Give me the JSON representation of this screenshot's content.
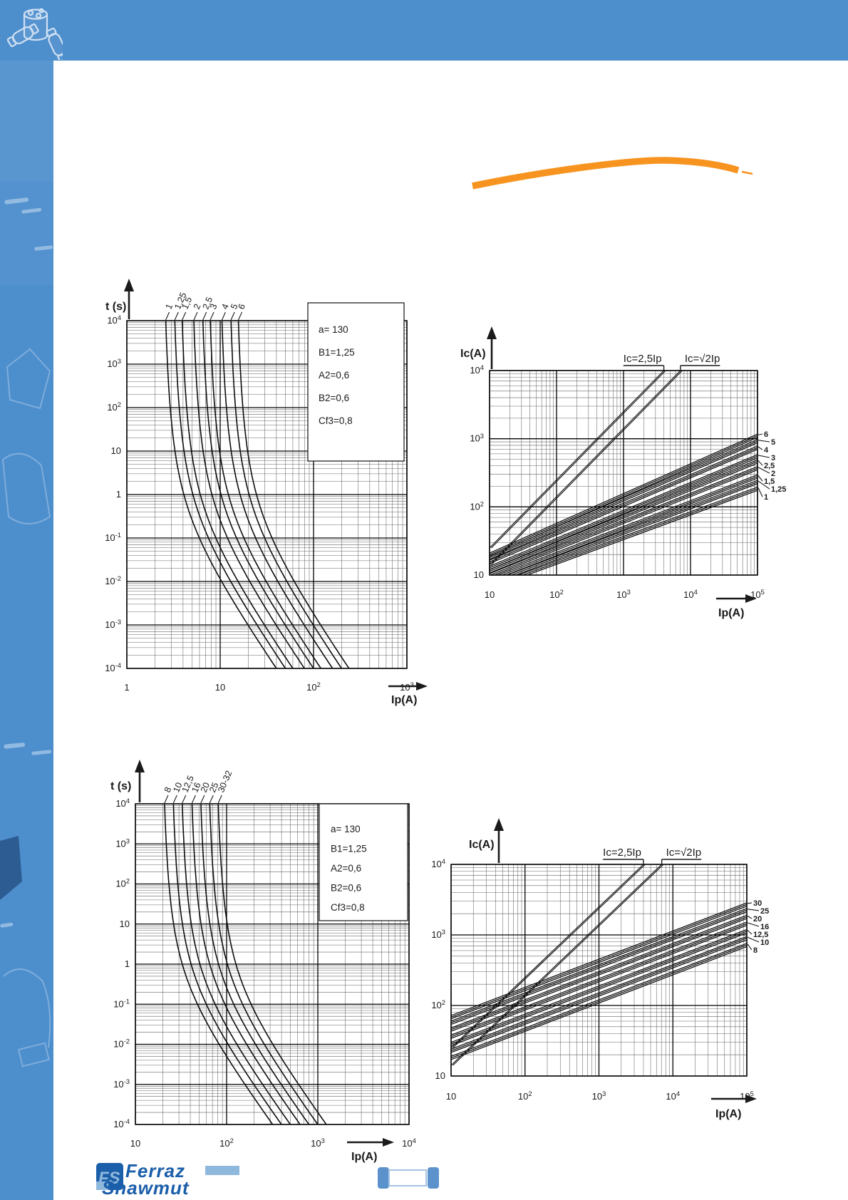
{
  "page": {
    "header_color": "#4d8ecd",
    "sidebar_color": "#4d8ecd",
    "accent_orange": "#f79420",
    "ink_color": "#1a1a1a"
  },
  "logo": {
    "emblem": "FS",
    "brand_top": "Ferraz",
    "brand_bottom": "Shawmut",
    "color_dark": "#1b5ea9",
    "color_light": "#8fb8dd"
  },
  "footer_fuse": {
    "cap_color": "#5b92cc",
    "body_stroke": "#a6c3e2"
  },
  "chart_data": [
    {
      "id": "tc_small",
      "type": "line",
      "subtype": "time_current",
      "title": "",
      "ylabel": "t (s)",
      "xlabel": "Ip(A)",
      "xlim": [
        1,
        1000
      ],
      "ylim": [
        0.0001,
        10000
      ],
      "grid": true,
      "x_ticks": [
        "1",
        "10",
        "10^2",
        "10^3"
      ],
      "y_ticks": [
        "10^4",
        "10^3",
        "10^2",
        "10",
        "1",
        "10^-1",
        "10^-2",
        "10^-3",
        "10^-4"
      ],
      "legend_position": "upper-right-inside",
      "legend_box": [
        "a= 130",
        "B1=1,25",
        "A2=0,6",
        "B2=0,6",
        "Cf3=0,8"
      ],
      "series": [
        {
          "name": "1",
          "rating": 1,
          "i_vertical": 2.2
        },
        {
          "name": "1,25",
          "rating": 1.25,
          "i_vertical": 2.75
        },
        {
          "name": "1,5",
          "rating": 1.5,
          "i_vertical": 3.3
        },
        {
          "name": "2",
          "rating": 2,
          "i_vertical": 4.4
        },
        {
          "name": "2,5",
          "rating": 2.5,
          "i_vertical": 5.5
        },
        {
          "name": "3",
          "rating": 3,
          "i_vertical": 6.6
        },
        {
          "name": "4",
          "rating": 4,
          "i_vertical": 8.8
        },
        {
          "name": "5",
          "rating": 5,
          "i_vertical": 11
        },
        {
          "name": "6",
          "rating": 6,
          "i_vertical": 13.2
        }
      ],
      "model": {
        "slope": 3,
        "knee": 0.35,
        "offset": 0.5
      }
    },
    {
      "id": "co_small",
      "type": "line",
      "subtype": "cutoff",
      "title": "",
      "ylabel": "Ic(A)",
      "xlabel": "Ip(A)",
      "xlim": [
        10,
        100000
      ],
      "ylim": [
        10,
        10000
      ],
      "grid": true,
      "x_ticks": [
        "10",
        "10^2",
        "10^3",
        "10^4",
        "10^5"
      ],
      "y_ticks": [
        "10^4",
        "10^3",
        "10^2",
        "10"
      ],
      "ref_lines": [
        {
          "label": "Ic=2,5Ip",
          "factor": 2.5
        },
        {
          "label": "Ic=√2Ip",
          "factor": 1.4142
        }
      ],
      "series": [
        {
          "name": "6",
          "rating": 6,
          "ic_at_10A": 21,
          "ic_at_100kA": 1170
        },
        {
          "name": "5",
          "rating": 5,
          "ic_at_10A": 19,
          "ic_at_100kA": 975
        },
        {
          "name": "4",
          "rating": 4,
          "ic_at_10A": 16.5,
          "ic_at_100kA": 780
        },
        {
          "name": "3",
          "rating": 3,
          "ic_at_10A": 13.5,
          "ic_at_100kA": 585
        },
        {
          "name": "2,5",
          "rating": 2.5,
          "ic_at_10A": 12,
          "ic_at_100kA": 490
        },
        {
          "name": "2",
          "rating": 2,
          "ic_at_10A": 10.5,
          "ic_at_100kA": 390
        },
        {
          "name": "1,5",
          "rating": 1.5,
          "ic_at_10A": 9,
          "ic_at_100kA": 295
        },
        {
          "name": "1,25",
          "rating": 1.25,
          "ic_at_10A": 8,
          "ic_at_100kA": 245
        },
        {
          "name": "1",
          "rating": 1,
          "ic_at_10A": 7,
          "ic_at_100kA": 195
        }
      ]
    },
    {
      "id": "tc_large",
      "type": "line",
      "subtype": "time_current",
      "title": "",
      "ylabel": "t (s)",
      "xlabel": "Ip(A)",
      "xlim": [
        10,
        10000
      ],
      "ylim": [
        0.0001,
        10000
      ],
      "grid": true,
      "x_ticks": [
        "10",
        "10^2",
        "10^3",
        "10^4"
      ],
      "y_ticks": [
        "10^4",
        "10^3",
        "10^2",
        "10",
        "1",
        "10^-1",
        "10^-2",
        "10^-3",
        "10^-4"
      ],
      "legend_position": "upper-right-inside",
      "legend_box": [
        "a= 130",
        "B1=1,25",
        "A2=0,6",
        "B2=0,6",
        "Cf3=0,8"
      ],
      "series": [
        {
          "name": "8",
          "rating": 8,
          "i_vertical": 17.6
        },
        {
          "name": "10",
          "rating": 10,
          "i_vertical": 22
        },
        {
          "name": "12,5",
          "rating": 12.5,
          "i_vertical": 27.5
        },
        {
          "name": "16",
          "rating": 16,
          "i_vertical": 35.2
        },
        {
          "name": "20",
          "rating": 20,
          "i_vertical": 44
        },
        {
          "name": "25",
          "rating": 25,
          "i_vertical": 55
        },
        {
          "name": "30-32",
          "rating": 32,
          "i_vertical": 68.2
        }
      ],
      "model": {
        "slope": 3,
        "knee": 0.35,
        "offset": 0.5
      }
    },
    {
      "id": "co_large",
      "type": "line",
      "subtype": "cutoff",
      "title": "",
      "ylabel": "Ic(A)",
      "xlabel": "Ip(A)",
      "xlim": [
        10,
        100000
      ],
      "ylim": [
        10,
        10000
      ],
      "grid": true,
      "x_ticks": [
        "10",
        "10^2",
        "10^3",
        "10^4",
        "10^5"
      ],
      "y_ticks": [
        "10^4",
        "10^3",
        "10^2",
        "10"
      ],
      "ref_lines": [
        {
          "label": "Ic=2,5Ip",
          "factor": 2.5
        },
        {
          "label": "Ic=√2Ip",
          "factor": 1.4142
        }
      ],
      "series": [
        {
          "name": "30",
          "rating": 30,
          "ic_at_10A": 72,
          "ic_at_100kA": 2850
        },
        {
          "name": "25",
          "rating": 25,
          "ic_at_10A": 60,
          "ic_at_100kA": 2375
        },
        {
          "name": "20",
          "rating": 20,
          "ic_at_10A": 48,
          "ic_at_100kA": 1900
        },
        {
          "name": "16",
          "rating": 16,
          "ic_at_10A": 38,
          "ic_at_100kA": 1520
        },
        {
          "name": "12,5",
          "rating": 12.5,
          "ic_at_10A": 30,
          "ic_at_100kA": 1190
        },
        {
          "name": "10",
          "rating": 10,
          "ic_at_10A": 24,
          "ic_at_100kA": 950
        },
        {
          "name": "8",
          "rating": 8,
          "ic_at_10A": 19,
          "ic_at_100kA": 760
        }
      ]
    }
  ]
}
